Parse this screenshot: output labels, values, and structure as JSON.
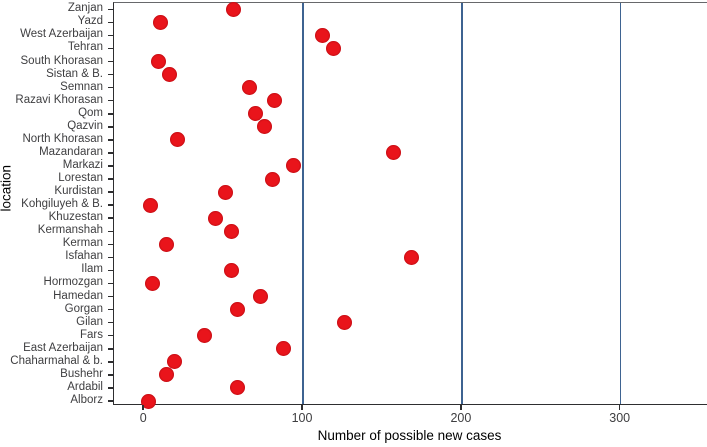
{
  "chart_data": {
    "type": "scatter",
    "orientation": "horizontal_dot_plot",
    "title": "",
    "xlabel": "Number of possible new cases",
    "ylabel": "location",
    "xlim": [
      -19,
      354
    ],
    "x_ticks": [
      0,
      100,
      200,
      300
    ],
    "gridline_x": [
      100,
      200,
      300
    ],
    "grid": "vertical gridlines at 100, 200, 300",
    "legend_position": "none",
    "marker": "filled circle, diameter ~15px",
    "colors": {
      "marker": "#e9141b",
      "gridline": "#3e6391",
      "axis": "#2e2e30",
      "text": "#3e3e40"
    },
    "categories": [
      "Zanjan",
      "Yazd",
      "West Azerbaijan",
      "Tehran",
      "South Khorasan",
      "Sistan & B.",
      "Semnan",
      "Razavi Khorasan",
      "Qom",
      "Qazvin",
      "North Khorasan",
      "Mazandaran",
      "Markazi",
      "Lorestan",
      "Kurdistan",
      "Kohgiluyeh & B.",
      "Khuzestan",
      "Kermanshah",
      "Kerman",
      "Isfahan",
      "Ilam",
      "Hormozgan",
      "Hamedan",
      "Gorgan",
      "Gilan",
      "Fars",
      "East Azerbaijan",
      "Chaharmahal & b.",
      "Bushehr",
      "Ardabil",
      "Alborz"
    ],
    "values": [
      56,
      10,
      112,
      119,
      9,
      16,
      66,
      82,
      70,
      76,
      21,
      157,
      94,
      81,
      51,
      4,
      45,
      55,
      14,
      168,
      55,
      5,
      73,
      59,
      126,
      38,
      88,
      19,
      14,
      59,
      3
    ]
  }
}
